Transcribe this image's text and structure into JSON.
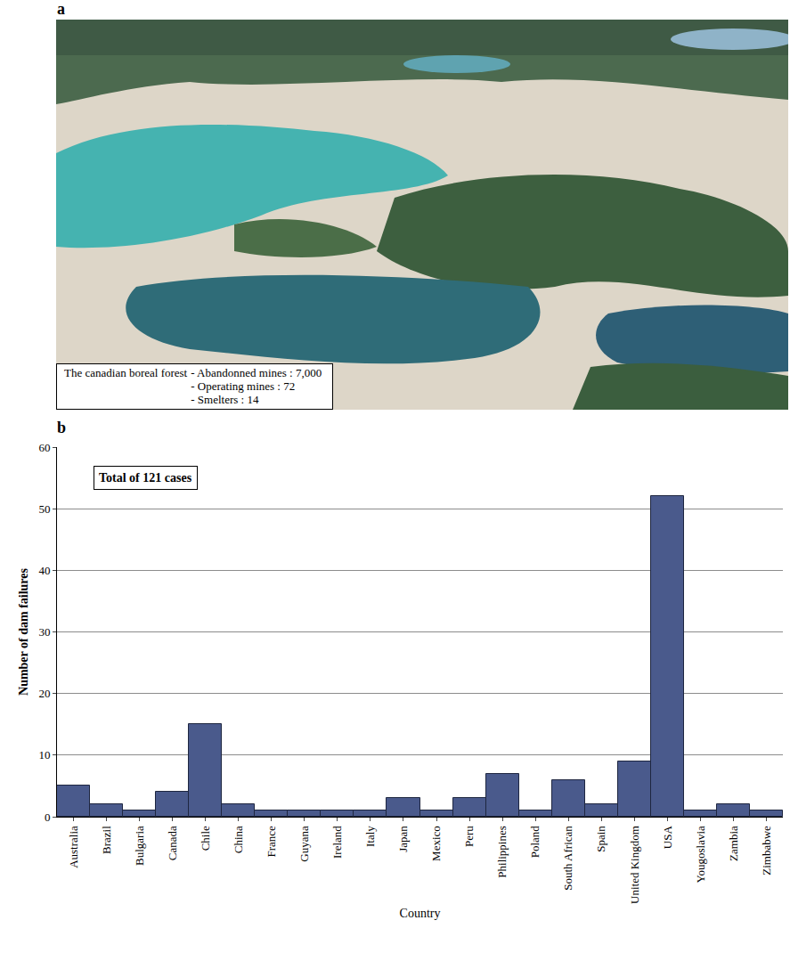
{
  "panels": [
    {
      "letter": "a",
      "caption": {
        "heading": "The canadian boreal forest",
        "items": [
          "- Abandonned mines : 7,000",
          "- Operating mines : 72",
          "- Smelters : 14"
        ]
      }
    },
    {
      "letter": "b"
    }
  ],
  "chart_data": {
    "type": "bar",
    "annotation": "Total of 121 cases",
    "x_label": "Country",
    "y_label": "Number of dam failures",
    "categories": [
      "Australia",
      "Brazil",
      "Bulgaria",
      "Canada",
      "Chile",
      "China",
      "France",
      "Guyana",
      "Ireland",
      "Italy",
      "Japan",
      "Mexico",
      "Peru",
      "Philippines",
      "Poland",
      "South African",
      "Spain",
      "United Kingdom",
      "USA",
      "Yougoslavia",
      "Zambia",
      "Zimbabwe"
    ],
    "values": [
      5,
      2,
      1,
      4,
      15,
      2,
      1,
      1,
      1,
      1,
      3,
      1,
      3,
      7,
      1,
      6,
      2,
      9,
      52,
      1,
      2,
      1
    ],
    "color": "#4a5a8c",
    "ylim": [
      0,
      60
    ],
    "yticks": [
      0,
      10,
      20,
      30,
      40,
      50,
      60
    ],
    "grid": true
  }
}
